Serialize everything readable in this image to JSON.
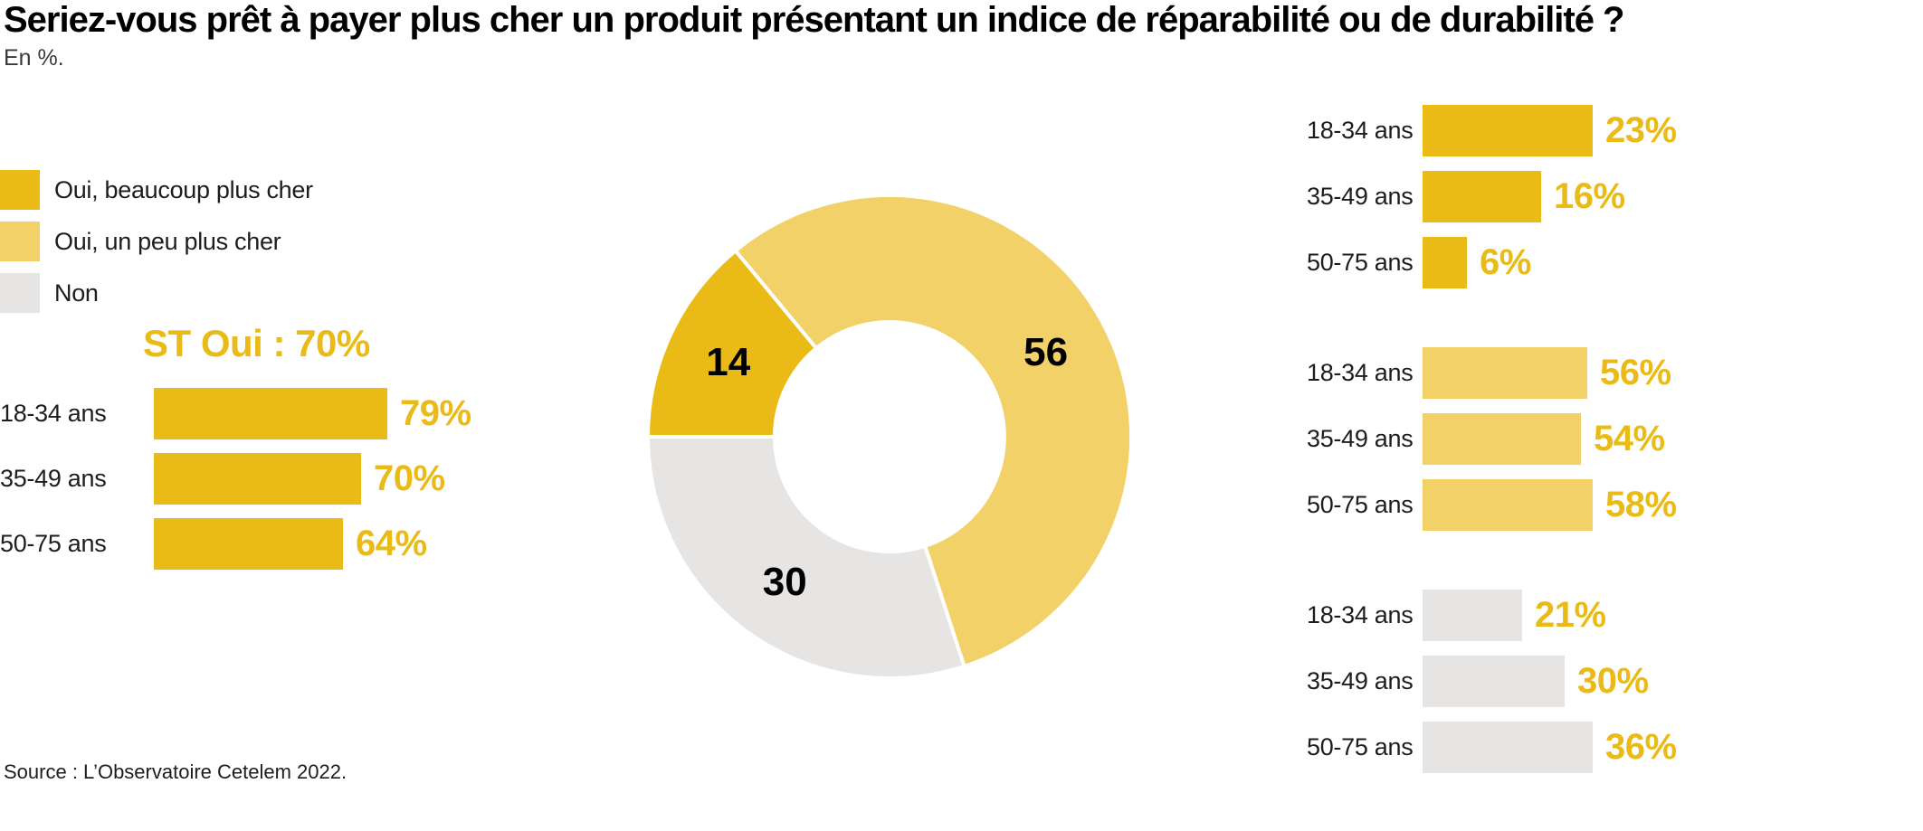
{
  "title": "Seriez-vous prêt à payer plus cher un produit présentant un indice de réparabilité ou de durabilité ?",
  "subtitle": "En %.",
  "source": "Source : L’Observatoire Cetelem 2022.",
  "colors": {
    "gold": "#EABB17",
    "light_gold": "#F2D169",
    "gray": "#E6E5E3",
    "label_text": "#1D1D1B",
    "number_text": "#000000"
  },
  "legend": [
    {
      "label": "Oui, beaucoup plus cher",
      "color_key": "gold"
    },
    {
      "label": "Oui, un peu plus cher",
      "color_key": "light_gold"
    },
    {
      "label": "Non",
      "color_key": "gray"
    }
  ],
  "chart_data": [
    {
      "type": "bar",
      "title": "ST Oui : 70%",
      "orientation": "horizontal",
      "categories": [
        "18-34 ans",
        "35-49 ans",
        "50-75 ans"
      ],
      "values": [
        79,
        70,
        64
      ],
      "unit": "%",
      "color_key": "gold",
      "value_label_color_key": "gold"
    },
    {
      "type": "pie",
      "subtype": "donut",
      "start_angle_deg": 270,
      "direction": "clockwise",
      "segments": [
        {
          "label": "Oui, beaucoup plus cher",
          "value": 14,
          "color_key": "gold"
        },
        {
          "label": "Oui, un peu plus cher",
          "value": 56,
          "color_key": "light_gold"
        },
        {
          "label": "Non",
          "value": 30,
          "color_key": "gray"
        }
      ]
    },
    {
      "type": "bar",
      "orientation": "horizontal",
      "categories": [
        "18-34 ans",
        "35-49 ans",
        "50-75 ans"
      ],
      "unit": "%",
      "value_label_color_key": "gold",
      "series": [
        {
          "name": "Oui, beaucoup plus cher",
          "color_key": "gold",
          "values": [
            23,
            16,
            6
          ]
        },
        {
          "name": "Oui, un peu plus cher",
          "color_key": "light_gold",
          "values": [
            56,
            54,
            58
          ]
        },
        {
          "name": "Non",
          "color_key": "gray",
          "values": [
            21,
            30,
            36
          ]
        }
      ]
    }
  ]
}
